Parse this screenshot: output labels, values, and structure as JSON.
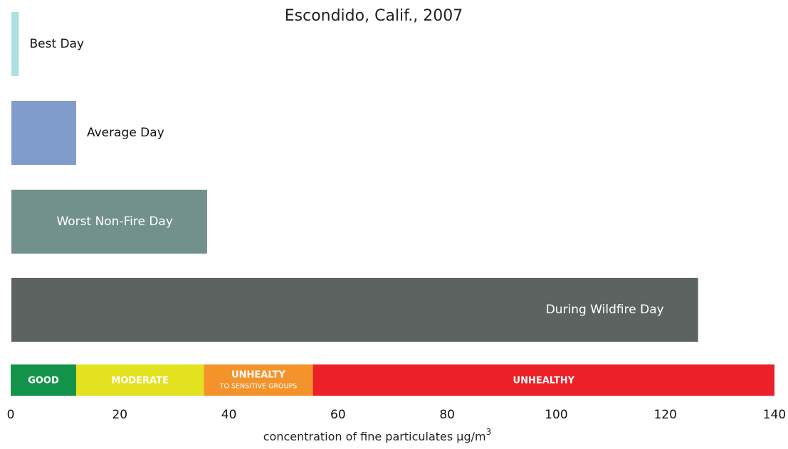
{
  "chart_data": {
    "type": "barh",
    "title": "Escondido, Calif., 2007",
    "categories": [
      "Best Day",
      "Average Day",
      "Worst Non-Fire Day",
      "During Wildfire Day"
    ],
    "values": [
      1.5,
      12,
      36,
      126
    ],
    "colors": [
      "#b0dfe0",
      "#7f9ccb",
      "#72908c",
      "#5d6360"
    ],
    "xlim": [
      0,
      140
    ],
    "xticks": [
      0,
      20,
      40,
      60,
      80,
      100,
      120,
      140
    ],
    "xlabel": {
      "text": "concentration of fine particulates μg/m",
      "superscript": "3"
    },
    "bands": [
      {
        "label": "GOOD",
        "start": 0,
        "end": 12,
        "color": "#13934a",
        "text_color": "#ffffff"
      },
      {
        "label": "MODERATE",
        "start": 12,
        "end": 35.4,
        "color": "#e3e21f",
        "text_color": "#ffffff"
      },
      {
        "label": "UNHEALTY",
        "sublabel": "TO SENSITIVE GROUPS",
        "start": 35.4,
        "end": 55.4,
        "color": "#f4932a",
        "text_color": "#ffffff"
      },
      {
        "label": "UNHEALTHY",
        "start": 55.4,
        "end": 140,
        "color": "#ec2028",
        "text_color": "#ffffff"
      }
    ]
  }
}
